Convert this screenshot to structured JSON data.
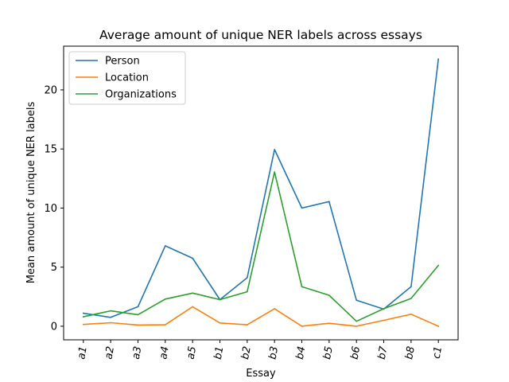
{
  "chart_data": {
    "type": "line",
    "title": "Average amount of unique NER labels across essays",
    "xlabel": "Essay",
    "ylabel": "Mean amount of unique NER labels",
    "categories": [
      "a1",
      "a2",
      "a3",
      "a4",
      "a5",
      "b1",
      "b2",
      "b3",
      "b4",
      "b5",
      "b6",
      "b7",
      "b8",
      "c1"
    ],
    "ylim": [
      -1.15,
      23.7
    ],
    "yticks": [
      0,
      5,
      10,
      15,
      20
    ],
    "grid": false,
    "legend_position": "top-left",
    "series": [
      {
        "name": "Person",
        "color": "#1f77b4",
        "values": [
          1.1,
          0.75,
          1.65,
          6.8,
          5.75,
          2.25,
          4.1,
          14.95,
          10.0,
          10.55,
          2.2,
          1.45,
          3.35,
          22.6
        ]
      },
      {
        "name": "Location",
        "color": "#ff7f0e",
        "values": [
          0.15,
          0.3,
          0.1,
          0.12,
          1.65,
          0.28,
          0.12,
          1.48,
          0.0,
          0.25,
          0.0,
          0.5,
          1.02,
          0.0
        ]
      },
      {
        "name": "Organizations",
        "color": "#2ca02c",
        "values": [
          0.8,
          1.3,
          0.98,
          2.3,
          2.8,
          2.25,
          2.92,
          13.05,
          3.35,
          2.62,
          0.42,
          1.48,
          2.35,
          5.15
        ]
      }
    ]
  }
}
